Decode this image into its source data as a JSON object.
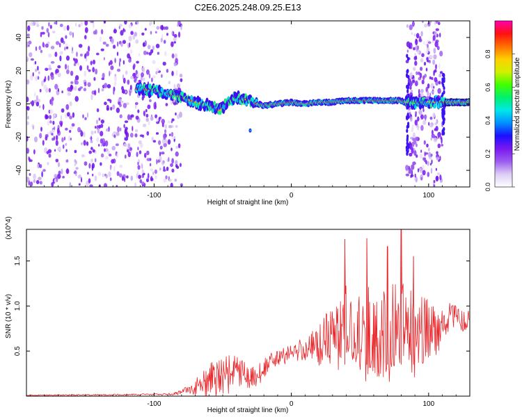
{
  "page_title": "C2E6.2025.248.09.25.E13",
  "chart_data": [
    {
      "type": "heatmap",
      "name": "spectrogram",
      "title": "C2E6.2025.248.09.25.E13",
      "xlabel": "Height of straight line (km)",
      "ylabel": "Frequency (Hz)",
      "xlim": [
        -193,
        130
      ],
      "ylim": [
        -50,
        50
      ],
      "x_ticks": [
        -100,
        0,
        100
      ],
      "y_ticks": [
        -40,
        -20,
        0,
        20,
        40
      ],
      "x_tick_labels": [
        "-100",
        "0",
        "100"
      ],
      "y_tick_labels": [
        "-40",
        "-20",
        "0",
        "20",
        "40"
      ],
      "noise_regions_km": [
        [
          -193,
          -80
        ],
        [
          84,
          110
        ]
      ],
      "signal_track": {
        "x": [
          -113,
          -100,
          -90,
          -80,
          -70,
          -60,
          -52,
          -45,
          -40,
          -35,
          -30,
          -25,
          -20,
          -10,
          0,
          10,
          20,
          30,
          40,
          50,
          60,
          70,
          80,
          83,
          112,
          130
        ],
        "y": [
          9,
          8,
          6,
          4,
          1,
          -1,
          -4,
          2,
          4,
          3,
          2,
          0,
          -1,
          0,
          1,
          0,
          1,
          1,
          2,
          2,
          2,
          2,
          2,
          1,
          1,
          1
        ]
      },
      "colorbar": {
        "label": "Normalized spectral amplitude",
        "range": [
          0,
          1
        ],
        "ticks": [
          0.0,
          0.2,
          0.4,
          0.6,
          0.8
        ],
        "tick_labels": [
          "0.0",
          "0.2",
          "0.4",
          "0.6",
          "0.8"
        ],
        "colors": [
          "#ffffff",
          "#dccdf5",
          "#9b5cf0",
          "#7a18f0",
          "#1a10ff",
          "#0090ff",
          "#00e8e8",
          "#00f070",
          "#40ff00",
          "#d0f000",
          "#ffd000",
          "#ff7000",
          "#ff1010",
          "#ff00b0"
        ]
      }
    },
    {
      "type": "line",
      "name": "snr",
      "xlabel": "Height of straight line (km)",
      "ylabel": "SNR (10 * v/v)",
      "y_scale_label": "(x10^4)",
      "xlim": [
        -193,
        130
      ],
      "ylim": [
        0,
        1.85
      ],
      "x_ticks": [
        -100,
        0,
        100
      ],
      "y_ticks": [
        0.5,
        1.0,
        1.5
      ],
      "x_tick_labels": [
        "-100",
        "0",
        "100"
      ],
      "y_tick_labels": [
        "0.5",
        "1.0",
        "1.5"
      ],
      "series": [
        {
          "name": "SNR",
          "color": "#e8262a",
          "envelope_x": [
            -193,
            -90,
            -80,
            -75,
            -70,
            -65,
            -60,
            -55,
            -50,
            -45,
            -40,
            -35,
            -30,
            -25,
            -20,
            -15,
            -10,
            -5,
            0,
            5,
            10,
            15,
            20,
            25,
            30,
            35,
            38,
            42,
            46,
            50,
            55,
            60,
            65,
            70,
            75,
            80,
            85,
            90,
            95,
            100,
            105,
            110,
            115,
            120,
            125,
            130
          ],
          "envelope_mid": [
            0.01,
            0.02,
            0.04,
            0.07,
            0.1,
            0.14,
            0.18,
            0.2,
            0.22,
            0.25,
            0.28,
            0.24,
            0.2,
            0.22,
            0.3,
            0.38,
            0.42,
            0.45,
            0.48,
            0.5,
            0.52,
            0.55,
            0.58,
            0.62,
            0.65,
            0.62,
            0.7,
            0.72,
            0.66,
            0.68,
            0.7,
            0.72,
            0.66,
            0.7,
            0.72,
            0.74,
            0.72,
            0.65,
            0.7,
            0.72,
            0.75,
            0.8,
            0.85,
            0.88,
            0.82,
            0.85
          ],
          "envelope_amp": [
            0.005,
            0.01,
            0.03,
            0.06,
            0.09,
            0.14,
            0.18,
            0.2,
            0.22,
            0.22,
            0.2,
            0.15,
            0.12,
            0.12,
            0.12,
            0.1,
            0.1,
            0.1,
            0.1,
            0.12,
            0.15,
            0.18,
            0.25,
            0.3,
            0.35,
            0.4,
            0.55,
            0.5,
            0.5,
            0.55,
            0.55,
            0.5,
            0.5,
            0.55,
            0.55,
            0.55,
            0.5,
            0.45,
            0.4,
            0.35,
            0.3,
            0.25,
            0.2,
            0.15,
            0.12,
            0.1
          ],
          "peaks": [
            {
              "x": 39,
              "y": 1.74
            },
            {
              "x": 55,
              "y": 1.75
            },
            {
              "x": 70,
              "y": 1.66
            },
            {
              "x": 80,
              "y": 1.85
            },
            {
              "x": 89,
              "y": 1.55
            }
          ]
        }
      ]
    }
  ]
}
